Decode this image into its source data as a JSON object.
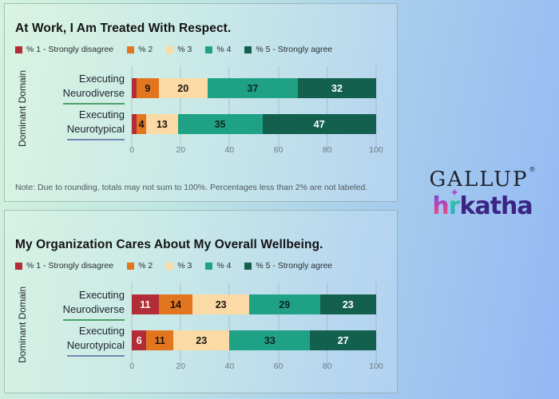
{
  "chart_data": [
    {
      "type": "bar",
      "orientation": "horizontal",
      "stacked": true,
      "title": "At Work, I Am Treated With Respect.",
      "y_axis_label": "Dominant Domain",
      "categories": [
        "Executing Neurodiverse",
        "Executing Neurotypical"
      ],
      "categories_lines": [
        [
          "Executing",
          "Neurodiverse"
        ],
        [
          "Executing",
          "Neurotypical"
        ]
      ],
      "category_underline_colors": [
        "#4ea06b",
        "#7486b2"
      ],
      "series": [
        {
          "name": "% 1 - Strongly disagree",
          "color": "#b22d38",
          "values": [
            2,
            2
          ],
          "labels": [
            "",
            ""
          ]
        },
        {
          "name": "% 2",
          "color": "#e2761f",
          "values": [
            9,
            4
          ],
          "labels": [
            "9",
            "4"
          ]
        },
        {
          "name": "% 3",
          "color": "#fbdaa6",
          "values": [
            20,
            13
          ],
          "labels": [
            "20",
            "13"
          ]
        },
        {
          "name": "% 4",
          "color": "#1fa185",
          "values": [
            37,
            35
          ],
          "labels": [
            "37",
            "35"
          ]
        },
        {
          "name": "% 5 - Strongly agree",
          "color": "#14604f",
          "values": [
            32,
            47
          ],
          "labels": [
            "32",
            "47"
          ]
        }
      ],
      "label_colors": [
        "#ffffff",
        "#18120c",
        "#1a140d",
        "#0f2620",
        "#ffffff"
      ],
      "xlim": [
        0,
        100
      ],
      "x_ticks": [
        0,
        20,
        40,
        60,
        80,
        100
      ],
      "grid": true,
      "legend_position": "top",
      "note": "Note: Due to rounding, totals may not sum to 100%. Percentages less than 2% are not labeled."
    },
    {
      "type": "bar",
      "orientation": "horizontal",
      "stacked": true,
      "title": "My Organization Cares About My Overall Wellbeing.",
      "y_axis_label": "Dominant Domain",
      "categories": [
        "Executing Neurodiverse",
        "Executing Neurotypical"
      ],
      "categories_lines": [
        [
          "Executing",
          "Neurodiverse"
        ],
        [
          "Executing",
          "Neurotypical"
        ]
      ],
      "category_underline_colors": [
        "#4ea06b",
        "#7486b2"
      ],
      "series": [
        {
          "name": "% 1 - Strongly disagree",
          "color": "#b22d38",
          "values": [
            11,
            6
          ],
          "labels": [
            "11",
            "6"
          ]
        },
        {
          "name": "% 2",
          "color": "#e2761f",
          "values": [
            14,
            11
          ],
          "labels": [
            "14",
            "11"
          ]
        },
        {
          "name": "% 3",
          "color": "#fbdaa6",
          "values": [
            23,
            23
          ],
          "labels": [
            "23",
            "23"
          ]
        },
        {
          "name": "% 4",
          "color": "#1fa185",
          "values": [
            29,
            33
          ],
          "labels": [
            "29",
            "33"
          ]
        },
        {
          "name": "% 5 - Strongly agree",
          "color": "#14604f",
          "values": [
            23,
            27
          ],
          "labels": [
            "23",
            "27"
          ]
        }
      ],
      "label_colors": [
        "#ffffff",
        "#18120c",
        "#1a140d",
        "#0f2620",
        "#ffffff"
      ],
      "xlim": [
        0,
        100
      ],
      "x_ticks": [
        0,
        20,
        40,
        60,
        80,
        100
      ],
      "grid": true,
      "legend_position": "top",
      "note": ""
    }
  ],
  "logos": {
    "gallup": {
      "text": "GALLUP",
      "reg": "®"
    },
    "hrkatha": {
      "h": "h",
      "r": "r",
      "rest": "katha",
      "sparkle": "✦"
    }
  }
}
